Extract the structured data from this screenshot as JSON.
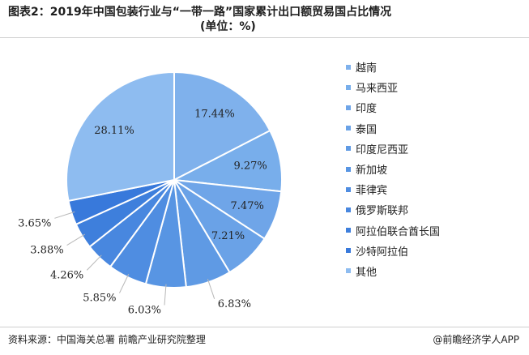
{
  "header": {
    "title_line1": "图表2：2019年中国包装行业与“一带一路”国家累计出口额贸易国占比情况",
    "title_line2": "(单位：%)"
  },
  "footer": {
    "source": "资料来源：中国海关总署 前瞻产业研究院整理",
    "brand": "@前瞻经济学人APP"
  },
  "chart_data": {
    "type": "pie",
    "title": "2019年中国包装行业与“一带一路”国家累计出口额贸易国占比情况",
    "unit": "%",
    "legend_position": "right",
    "categories": [
      "越南",
      "马来西亚",
      "印度",
      "泰国",
      "印度尼西亚",
      "新加坡",
      "菲律宾",
      "俄罗斯联邦",
      "阿拉伯联合酋长国",
      "沙特阿拉伯",
      "其他"
    ],
    "values": [
      17.44,
      9.27,
      7.47,
      7.21,
      6.83,
      6.03,
      5.85,
      4.26,
      3.88,
      3.65,
      28.11
    ],
    "labels": [
      "17.44%",
      "9.27%",
      "7.47%",
      "7.21%",
      "6.83%",
      "6.03%",
      "5.85%",
      "4.26%",
      "3.88%",
      "3.65%",
      "28.11%"
    ],
    "colors": [
      "#7fb1ec",
      "#78aeeb",
      "#6fa5e8",
      "#6aa2e7",
      "#5f9ae4",
      "#5895e3",
      "#4f8de1",
      "#4887df",
      "#3e7fdc",
      "#3879db",
      "#8ebcf0"
    ]
  }
}
